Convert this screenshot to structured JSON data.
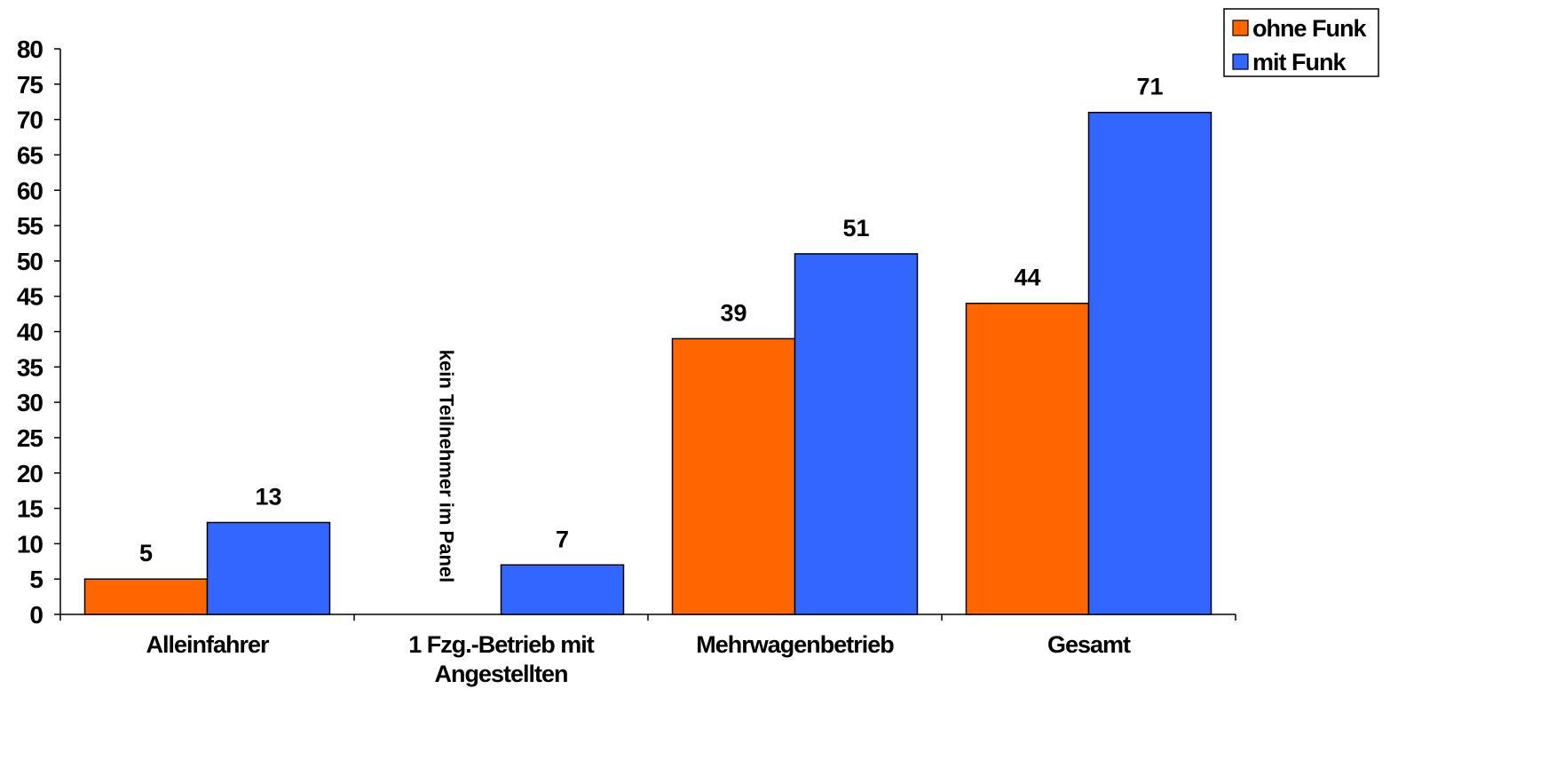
{
  "chart_data": {
    "type": "bar",
    "categories": [
      [
        "Alleinfahrer"
      ],
      [
        "1 Fzg.-Betrieb mit",
        "Angestellten"
      ],
      [
        "Mehrwagenbetrieb"
      ],
      [
        "Gesamt"
      ]
    ],
    "series": [
      {
        "name": "ohne Funk",
        "color": "#FF6600",
        "values": [
          5,
          null,
          39,
          44
        ]
      },
      {
        "name": "mit Funk",
        "color": "#3366FF",
        "values": [
          13,
          7,
          51,
          71
        ]
      }
    ],
    "ylim": [
      0,
      80
    ],
    "ytick_step": 5,
    "grid": false,
    "legend_position": "top-right",
    "annotations": [
      {
        "text": "kein Teilnehmer im Panel",
        "category_index": 1,
        "series_index": 0,
        "orientation": "vertical"
      }
    ]
  }
}
